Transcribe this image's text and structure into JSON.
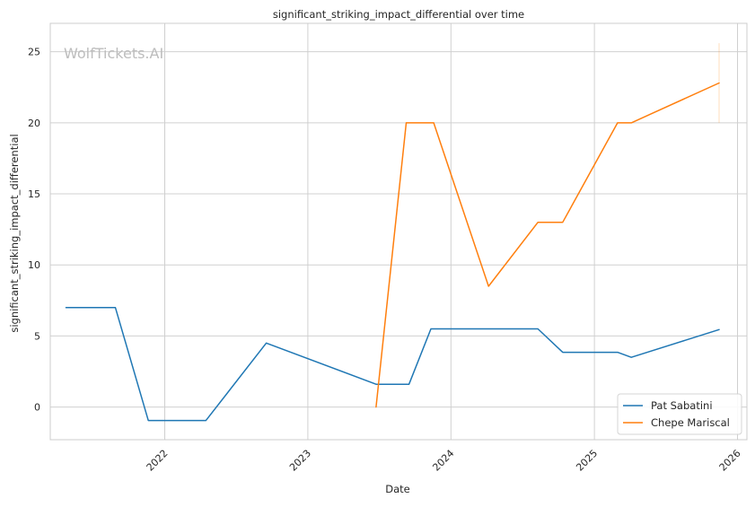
{
  "chart_data": {
    "type": "line",
    "title": "significant_striking_impact_differential over time",
    "xlabel": "Date",
    "ylabel": "significant_striking_impact_differential",
    "watermark": "WolfTickets.AI",
    "x_ticks": [
      "2022",
      "2023",
      "2024",
      "2025",
      "2026"
    ],
    "y_ticks": [
      "0",
      "5",
      "10",
      "15",
      "20",
      "25"
    ],
    "xlim": [
      "2021-03-15",
      "2026-01-25"
    ],
    "ylim": [
      -2.3,
      27
    ],
    "grid": true,
    "legend_position": "lower-right",
    "series": [
      {
        "name": "Pat Sabatini",
        "color": "#1f77b4",
        "points": [
          {
            "date": "2021-04-24",
            "value": 7.0
          },
          {
            "date": "2021-08-28",
            "value": 7.0
          },
          {
            "date": "2021-11-20",
            "value": -0.95
          },
          {
            "date": "2022-04-16",
            "value": -0.95
          },
          {
            "date": "2022-09-17",
            "value": 4.5
          },
          {
            "date": "2023-06-24",
            "value": 1.6
          },
          {
            "date": "2023-09-16",
            "value": 1.6
          },
          {
            "date": "2023-11-11",
            "value": 5.5
          },
          {
            "date": "2024-08-10",
            "value": 5.5
          },
          {
            "date": "2024-10-12",
            "value": 3.85
          },
          {
            "date": "2025-03-01",
            "value": 3.85
          },
          {
            "date": "2025-04-05",
            "value": 3.5
          },
          {
            "date": "2025-11-15",
            "value": 5.45
          }
        ]
      },
      {
        "name": "Chepe Mariscal",
        "color": "#ff7f0e",
        "points": [
          {
            "date": "2023-06-24",
            "value": 0.0
          },
          {
            "date": "2023-09-09",
            "value": 20.0
          },
          {
            "date": "2023-11-18",
            "value": 20.0
          },
          {
            "date": "2024-04-06",
            "value": 8.5
          },
          {
            "date": "2024-08-10",
            "value": 13.0
          },
          {
            "date": "2024-10-12",
            "value": 13.0
          },
          {
            "date": "2025-03-01",
            "value": 20.0
          },
          {
            "date": "2025-04-05",
            "value": 20.0
          },
          {
            "date": "2025-11-15",
            "value": 22.8
          }
        ]
      }
    ]
  }
}
